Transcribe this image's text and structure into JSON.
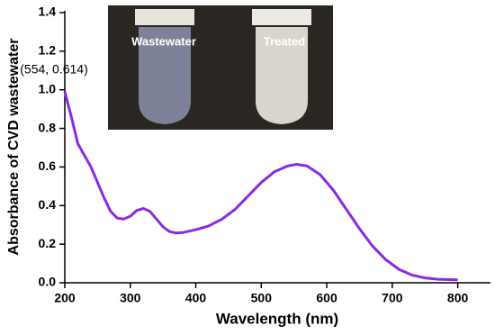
{
  "chart_data": {
    "type": "line",
    "xlabel": "Wavelength (nm)",
    "ylabel": "Absorbance of CVD wastewater",
    "annotation": "(554, 0.614)",
    "inset_labels": [
      "Wastewater",
      "Treated"
    ],
    "color": "#8a2be2",
    "x": [
      200,
      210,
      220,
      230,
      240,
      250,
      260,
      270,
      280,
      290,
      300,
      310,
      320,
      330,
      340,
      350,
      360,
      370,
      380,
      400,
      420,
      440,
      460,
      480,
      500,
      520,
      540,
      554,
      570,
      590,
      610,
      630,
      650,
      670,
      690,
      710,
      730,
      750,
      770,
      800
    ],
    "values": [
      0.99,
      0.86,
      0.72,
      0.66,
      0.6,
      0.52,
      0.44,
      0.37,
      0.335,
      0.33,
      0.345,
      0.375,
      0.385,
      0.37,
      0.33,
      0.29,
      0.265,
      0.258,
      0.26,
      0.275,
      0.295,
      0.33,
      0.38,
      0.45,
      0.52,
      0.575,
      0.605,
      0.614,
      0.605,
      0.56,
      0.48,
      0.38,
      0.28,
      0.19,
      0.12,
      0.07,
      0.04,
      0.025,
      0.018,
      0.015
    ],
    "xlim": [
      200,
      850
    ],
    "ylim": [
      0,
      1.4
    ],
    "xticks": [
      200,
      300,
      400,
      500,
      600,
      700,
      800
    ],
    "yticks": [
      {
        "value": 0,
        "label": "0.0"
      },
      0.2,
      0.4,
      0.6,
      0.8,
      {
        "value": 1,
        "label": "1.0"
      },
      1.2,
      1.4
    ]
  }
}
